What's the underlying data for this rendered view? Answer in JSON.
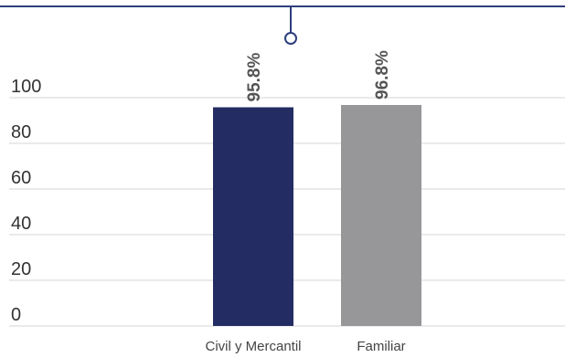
{
  "chart_data": {
    "type": "bar",
    "title": "",
    "xlabel": "",
    "ylabel": "",
    "categories": [
      "Civil y Mercantil",
      "Familiar"
    ],
    "values": [
      95.8,
      96.8
    ],
    "data_labels": [
      "95.8%",
      "96.8%"
    ],
    "colors": [
      "#232d63",
      "#97979a"
    ],
    "yticks": [
      0,
      20,
      40,
      60,
      80,
      100
    ],
    "ytick_labels": [
      "0",
      "20",
      "40",
      "60",
      "80",
      "100"
    ],
    "ylim": [
      0,
      100
    ],
    "grid": true,
    "legend": "none"
  },
  "decor": {
    "accent_color": "#2e3f7e",
    "gridline_color": "#d4d4d4",
    "marker_icon": "circle-pin-icon"
  }
}
